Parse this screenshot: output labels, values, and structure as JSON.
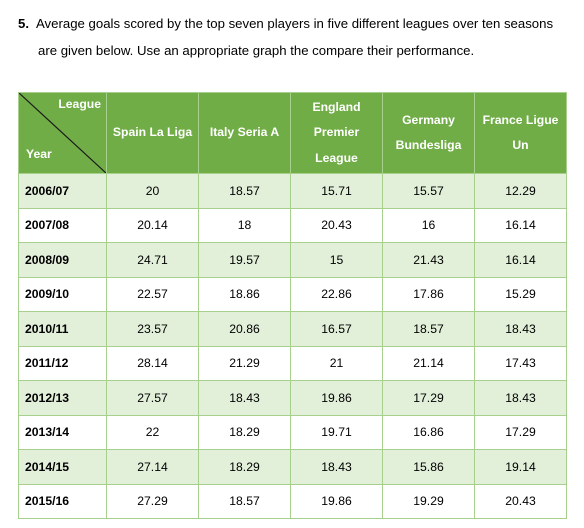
{
  "question": {
    "number": "5.",
    "line1": "Average goals scored by the top seven players in five different leagues over ten seasons",
    "line2": "are given below. Use an appropriate graph the compare their performance."
  },
  "table": {
    "corner_top": "League",
    "corner_bottom": "Year",
    "headers": [
      [
        "Spain La Liga"
      ],
      [
        "Italy Seria A"
      ],
      [
        "England",
        "Premier",
        "League"
      ],
      [
        "Germany",
        "Bundesliga"
      ],
      [
        "France Ligue",
        "Un"
      ]
    ],
    "rows": [
      {
        "year": "2006/07",
        "values": [
          "20",
          "18.57",
          "15.71",
          "15.57",
          "12.29"
        ]
      },
      {
        "year": "2007/08",
        "values": [
          "20.14",
          "18",
          "20.43",
          "16",
          "16.14"
        ]
      },
      {
        "year": "2008/09",
        "values": [
          "24.71",
          "19.57",
          "15",
          "21.43",
          "16.14"
        ]
      },
      {
        "year": "2009/10",
        "values": [
          "22.57",
          "18.86",
          "22.86",
          "17.86",
          "15.29"
        ]
      },
      {
        "year": "2010/11",
        "values": [
          "23.57",
          "20.86",
          "16.57",
          "18.57",
          "18.43"
        ]
      },
      {
        "year": "2011/12",
        "values": [
          "28.14",
          "21.29",
          "21",
          "21.14",
          "17.43"
        ]
      },
      {
        "year": "2012/13",
        "values": [
          "27.57",
          "18.43",
          "19.86",
          "17.29",
          "18.43"
        ]
      },
      {
        "year": "2013/14",
        "values": [
          "22",
          "18.29",
          "19.71",
          "16.86",
          "17.29"
        ]
      },
      {
        "year": "2014/15",
        "values": [
          "27.14",
          "18.29",
          "18.43",
          "15.86",
          "19.14"
        ]
      },
      {
        "year": "2015/16",
        "values": [
          "27.29",
          "18.57",
          "19.86",
          "19.29",
          "20.43"
        ]
      }
    ]
  },
  "colors": {
    "header_bg": "#70ad47",
    "band_bg": "#e2efd9",
    "border": "#a8d08d"
  }
}
